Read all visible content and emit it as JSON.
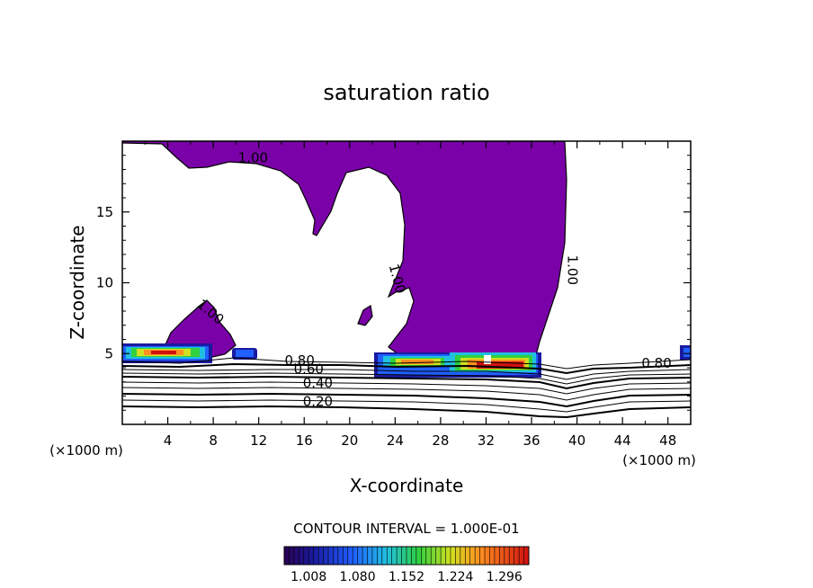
{
  "chart_data": {
    "type": "contour",
    "title": "saturation ratio",
    "xlabel": "X-coordinate",
    "ylabel": "Z-coordinate",
    "x_unit": "(×1000 m)",
    "xlim": [
      0,
      50
    ],
    "ylim": [
      0,
      20
    ],
    "x_ticks": [
      4,
      8,
      12,
      16,
      20,
      24,
      28,
      32,
      36,
      40,
      44,
      48
    ],
    "y_ticks": [
      5,
      10,
      15
    ],
    "contour_interval_text": "CONTOUR INTERVAL = 1.000E-01",
    "colorbar_labels": [
      "1.008",
      "1.080",
      "1.152",
      "1.224",
      "1.296"
    ],
    "colorbar_range": [
      0.972,
      1.332
    ],
    "saturated_fill_color": "#7a00a8",
    "contour_labels": [
      {
        "text": "1.00",
        "x": 11.5,
        "z": 18.5
      },
      {
        "text": "1.00",
        "x": 7.5,
        "z": 7.7
      },
      {
        "text": "1.00",
        "x": 23.8,
        "z": 10.2
      },
      {
        "text": "1.00",
        "x": 39.2,
        "z": 10.9
      },
      {
        "text": "0.80",
        "x": 15.6,
        "z": 4.2
      },
      {
        "text": "0.60",
        "x": 16.4,
        "z": 3.6
      },
      {
        "text": "0.40",
        "x": 17.2,
        "z": 2.6
      },
      {
        "text": "0.20",
        "x": 17.2,
        "z": 1.3
      },
      {
        "text": "0.80",
        "x": 47.0,
        "z": 4.0
      }
    ],
    "levels": [
      0.2,
      0.3,
      0.4,
      0.5,
      0.6,
      0.7,
      0.8,
      0.9,
      1.0
    ]
  }
}
